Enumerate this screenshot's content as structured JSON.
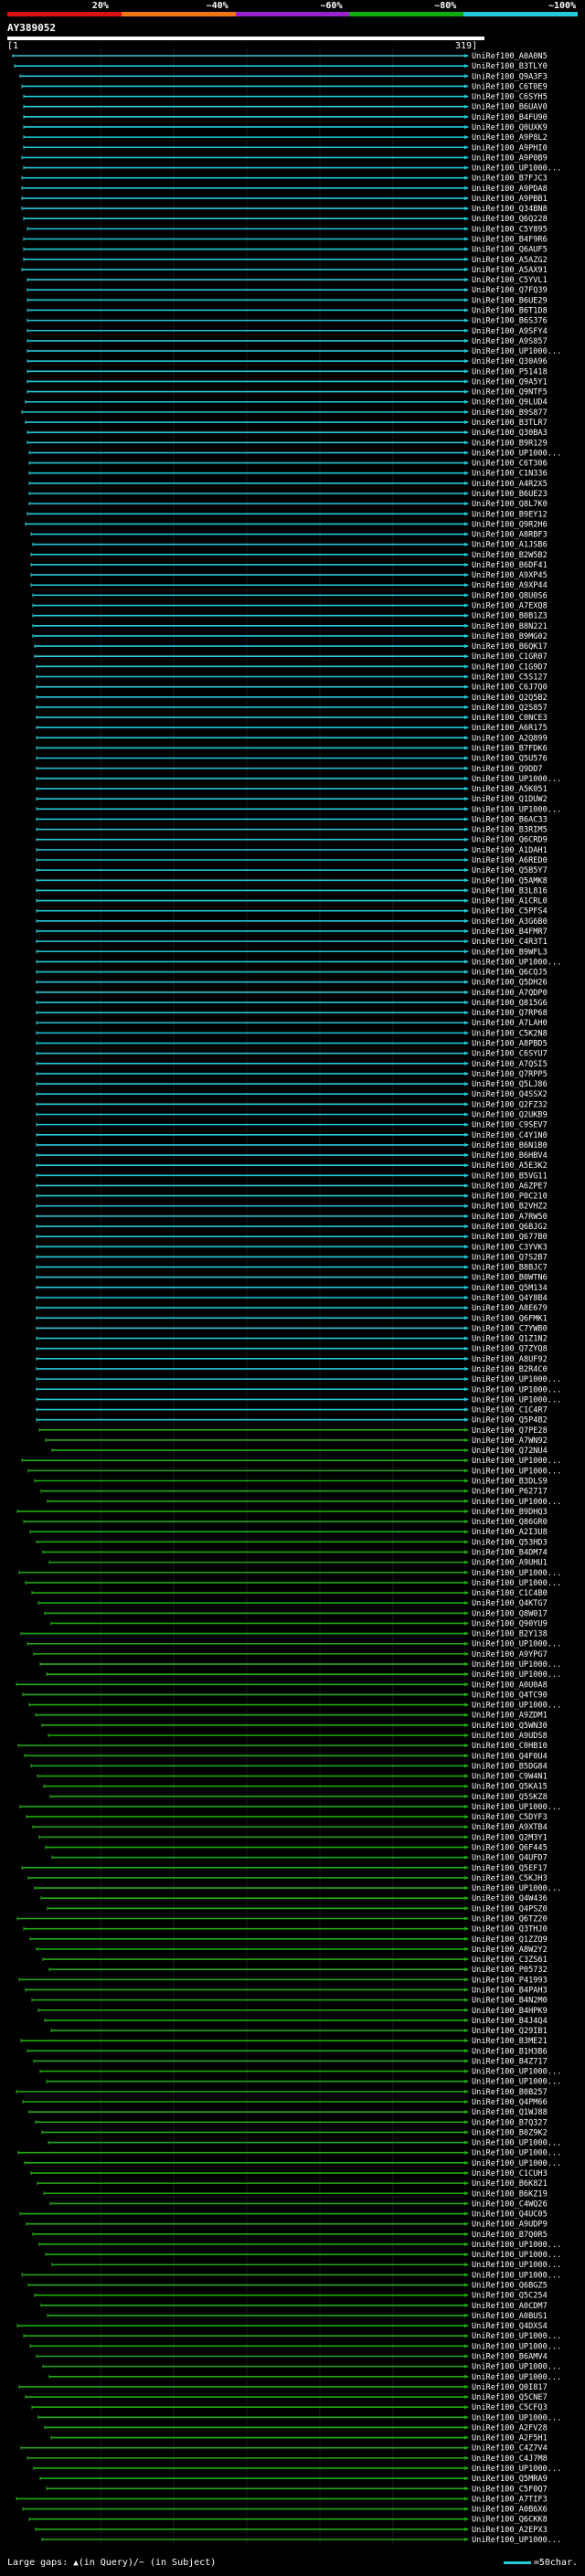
{
  "colors": {
    "legend": [
      "#dd1111",
      "#ee7711",
      "#9922cc",
      "#11aa11",
      "#22c9d8"
    ],
    "hit_cyan": "#22c9d8",
    "hit_green": "#22aa11",
    "gap_marker": "#ccff66",
    "text": "#ffffff",
    "background": "#000000"
  },
  "legend": {
    "labels": [
      "20%",
      "~40%",
      "~60%",
      "~80%",
      "~100%"
    ]
  },
  "query": {
    "id": "AY389052",
    "start": "1",
    "end": "319"
  },
  "footer": {
    "gaps_label": "Large gaps:",
    "query_gap_label": "(in Query)",
    "subject_gap_label": "(in Subject)",
    "scale_label": "=50char."
  },
  "hits": {
    "names": [
      "UniRef100_A0A0N5",
      "UniRef100_B3TLY0",
      "UniRef100_Q9A3F3",
      "UniRef100_C6T0E9",
      "UniRef100_C6SYH5",
      "UniRef100_B6UAV0",
      "UniRef100_B4FU90",
      "UniRef100_Q0UXK9",
      "UniRef100_A9P8L2",
      "UniRef100_A9PHI0",
      "UniRef100_A9P0B9",
      "UniRef100_UP1000...",
      "UniRef100_B7FJC3",
      "UniRef100_A9PDA8",
      "UniRef100_A9PBB1",
      "UniRef100_Q34BN8",
      "UniRef100_Q6Q228",
      "UniRef100_C5Y895",
      "UniRef100_B4F9R6",
      "UniRef100_Q6AUF5",
      "UniRef100_A5AZG2",
      "UniRef100_A5AX91",
      "UniRef100_C5YVL1",
      "UniRef100_Q7FQ39",
      "UniRef100_B6UE29",
      "UniRef100_B6T1D8",
      "UniRef100_B6S376",
      "UniRef100_A9SFY4",
      "UniRef100_A9S857",
      "UniRef100_UP1000...",
      "UniRef100_Q30A96",
      "UniRef100_P51418",
      "UniRef100_Q9A5Y1",
      "UniRef100_Q9NTF5",
      "UniRef100_Q9LUD4",
      "UniRef100_B9S877",
      "UniRef100_B3TLR7",
      "UniRef100_Q30BA3",
      "UniRef100_B9R129",
      "UniRef100_UP1000...",
      "UniRef100_C6T306",
      "UniRef100_C1N336",
      "UniRef100_A4R2X5",
      "UniRef100_B6UE23",
      "UniRef100_Q8L7K0",
      "UniRef100_B9EY12",
      "UniRef100_Q9R2H6",
      "UniRef100_A8RBF3",
      "UniRef100_A1JSB6",
      "UniRef100_B2W5B2",
      "UniRef100_B6DF41",
      "UniRef100_A9XP45",
      "UniRef100_A9XP44",
      "UniRef100_Q8U0S6",
      "UniRef100_A7EXQ8",
      "UniRef100_B0B1Z3",
      "UniRef100_B8N221",
      "UniRef100_B9MG02",
      "UniRef100_B6QK17",
      "UniRef100_C1GR07",
      "UniRef100_C1G9D7",
      "UniRef100_C5S127",
      "UniRef100_C6J7Q0",
      "UniRef100_Q2Q5B2",
      "UniRef100_Q2S857",
      "UniRef100_C0NCE3",
      "UniRef100_A6R175",
      "UniRef100_A2Q899",
      "UniRef100_B7FDK6",
      "UniRef100_Q5U576",
      "UniRef100_Q9DD7",
      "UniRef100_UP1000...",
      "UniRef100_A5K051",
      "UniRef100_Q1DUW2",
      "UniRef100_UP1000...",
      "UniRef100_B6AC33",
      "UniRef100_B3RIM5",
      "UniRef100_Q6CRD9",
      "UniRef100_A1DAH1",
      "UniRef100_A6RED0",
      "UniRef100_Q5B5Y7",
      "UniRef100_Q5AMK8",
      "UniRef100_B3L816",
      "UniRef100_A1CRL0",
      "UniRef100_C5PFS4",
      "UniRef100_A3G6B0",
      "UniRef100_B4FMR7",
      "UniRef100_C4R3T1",
      "UniRef100_B9WFL3",
      "UniRef100_UP1000...",
      "UniRef100_Q6CQJ5",
      "UniRef100_Q5DH26",
      "UniRef100_A7QDP0",
      "UniRef100_Q815G6",
      "UniRef100_Q7RP68",
      "UniRef100_A7LAH0",
      "UniRef100_C5K2N8",
      "UniRef100_A8PBD5",
      "UniRef100_C6SYU7",
      "UniRef100_A7QSI5",
      "UniRef100_Q7RPP5",
      "UniRef100_Q5LJ86",
      "UniRef100_Q4SSX2",
      "UniRef100_Q2FZ32",
      "UniRef100_Q2UKB9",
      "UniRef100_C9SEV7",
      "UniRef100_C4Y1N0",
      "UniRef100_B6N1B0",
      "UniRef100_B6HBV4",
      "UniRef100_A5E3K2",
      "UniRef100_B5VG11",
      "UniRef100_A6ZPE7",
      "UniRef100_P0C210",
      "UniRef100_B2VHZ2",
      "UniRef100_A7RW50",
      "UniRef100_Q6BJG2",
      "UniRef100_Q677B0",
      "UniRef100_C3YVK3",
      "UniRef100_Q7S2B7",
      "UniRef100_B8BJC7",
      "UniRef100_B0WTN6",
      "UniRef100_Q5M134",
      "UniRef100_Q4Y8B4",
      "UniRef100_A8E679",
      "UniRef100_Q6FMK1",
      "UniRef100_C7YWB0",
      "UniRef100_Q1Z1N2",
      "UniRef100_Q7ZYQ8",
      "UniRef100_A8UF92",
      "UniRef100_B2R4C0",
      "UniRef100_UP1000...",
      "UniRef100_UP1000...",
      "UniRef100_UP1000...",
      "UniRef100_C1C4R7",
      "UniRef100_Q5P4B2",
      "UniRef100_Q7PE28",
      "UniRef100_A7WN92",
      "UniRef100_Q72NU4",
      "UniRef100_UP1000...",
      "UniRef100_UP1000...",
      "UniRef100_B3DLS9",
      "UniRef100_P62717",
      "UniRef100_UP1000...",
      "UniRef100_B9DHQ3",
      "UniRef100_Q86GR0",
      "UniRef100_A2I3U8",
      "UniRef100_Q53HD3",
      "UniRef100_B4DM74",
      "UniRef100_A9UHU1",
      "UniRef100_UP1000...",
      "UniRef100_UP1000...",
      "UniRef100_C1C4B0",
      "UniRef100_Q4KTG7",
      "UniRef100_Q8W017",
      "UniRef100_Q90YU9",
      "UniRef100_B2Y138",
      "UniRef100_UP1000...",
      "UniRef100_A9YPG7",
      "UniRef100_UP1000...",
      "UniRef100_UP1000...",
      "UniRef100_A0U0A8",
      "UniRef100_Q4TC90",
      "UniRef100_UP1000...",
      "UniRef100_A9ZDM1",
      "UniRef100_Q5WN30",
      "UniRef100_A9UDS8",
      "UniRef100_C0HB10",
      "UniRef100_Q4F0U4",
      "UniRef100_B5DG84",
      "UniRef100_C9W4N1",
      "UniRef100_Q5KA15",
      "UniRef100_Q5SKZ8",
      "UniRef100_UP1000...",
      "UniRef100_C5DYF3",
      "UniRef100_A9XTB4",
      "UniRef100_Q2M3Y1",
      "UniRef100_Q6F445",
      "UniRef100_Q4UFD7",
      "UniRef100_Q5EF17",
      "UniRef100_C5KJH3",
      "UniRef100_UP1000...",
      "UniRef100_Q4W436",
      "UniRef100_Q4PSZ0",
      "UniRef100_Q6TZ20",
      "UniRef100_Q3THJ0",
      "UniRef100_Q1ZZQ9",
      "UniRef100_A8W2Y2",
      "UniRef100_C3ZS61",
      "UniRef100_P05732",
      "UniRef100_P41993",
      "UniRef100_B4PAH3",
      "UniRef100_B4N2M0",
      "UniRef100_B4HPK9",
      "UniRef100_B4J4Q4",
      "UniRef100_Q29IB1",
      "UniRef100_B3ME21",
      "UniRef100_B1H3B6",
      "UniRef100_B4Z717",
      "UniRef100_UP1000...",
      "UniRef100_UP1000...",
      "UniRef100_B0B257",
      "UniRef100_Q4PM66",
      "UniRef100_Q1WJ88",
      "UniRef100_B7Q327",
      "UniRef100_B0Z9K2",
      "UniRef100_UP1000...",
      "UniRef100_UP1000...",
      "UniRef100_UP1000...",
      "UniRef100_C1CUH3",
      "UniRef100_B6K821",
      "UniRef100_B6KZ19",
      "UniRef100_C4WQ26",
      "UniRef100_Q4UC05",
      "UniRef100_A9UDP9",
      "UniRef100_B7Q0R5",
      "UniRef100_UP1000...",
      "UniRef100_UP1000...",
      "UniRef100_UP1000...",
      "UniRef100_UP1000...",
      "UniRef100_Q6BGZ5",
      "UniRef100_Q5C254",
      "UniRef100_A0CDM7",
      "UniRef100_A0BUS1",
      "UniRef100_Q4DXS4",
      "UniRef100_UP1000...",
      "UniRef100_UP1000...",
      "UniRef100_B6AMV4",
      "UniRef100_UP1000...",
      "UniRef100_UP1000...",
      "UniRef100_Q0I817",
      "UniRef100_Q5CNE7",
      "UniRef100_C5CFQ3",
      "UniRef100_UP1000...",
      "UniRef100_A2FV28",
      "UniRef100_A2F5H1",
      "UniRef100_C4Z7V4",
      "UniRef100_C4J7M8",
      "UniRef100_UP1000...",
      "UniRef100_Q5MRA9",
      "UniRef100_C5F0Q7",
      "UniRef100_A7TIF3",
      "UniRef100_A0B6X6",
      "UniRef100_Q6CKK8",
      "UniRef100_A2EPX3",
      "UniRef100_UP1000..."
    ],
    "count_cyan": 135
  }
}
